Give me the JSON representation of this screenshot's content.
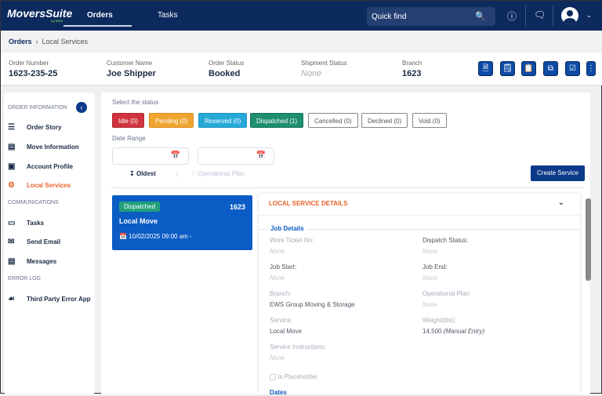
{
  "nav": {
    "logo": "MoversSuite",
    "logo_sub": "by EWS",
    "tabs": [
      "Orders",
      "Tasks"
    ],
    "search_placeholder": "Quick find"
  },
  "breadcrumb": [
    "Orders",
    "Local Services"
  ],
  "header": {
    "fields": [
      {
        "label": "Order Number",
        "value": "1623-235-25"
      },
      {
        "label": "Customer Name",
        "value": "Joe Shipper"
      },
      {
        "label": "Order Status",
        "value": "Booked"
      },
      {
        "label": "Shipment Status",
        "value": "None"
      },
      {
        "label": "Branch",
        "value": "1623"
      }
    ]
  },
  "sidebar": {
    "sections": [
      {
        "title": "ORDER INFORMATION",
        "items": [
          {
            "label": "Order Story",
            "icon": "list-icon"
          },
          {
            "label": "Move Information",
            "icon": "document-icon"
          },
          {
            "label": "Account Profile",
            "icon": "profile-icon"
          },
          {
            "label": "Local Services",
            "icon": "gears-icon",
            "active": true
          }
        ]
      },
      {
        "title": "COMMUNICATIONS",
        "items": [
          {
            "label": "Tasks",
            "icon": "monitor-icon"
          },
          {
            "label": "Send Email",
            "icon": "email-icon"
          },
          {
            "label": "Messages",
            "icon": "message-icon"
          }
        ]
      },
      {
        "title": "ERROR LOG",
        "items": [
          {
            "label": "Third Party Error App",
            "icon": "network-icon"
          }
        ]
      }
    ]
  },
  "filters": {
    "status_label": "Select the status",
    "statuses": [
      "Idle (0)",
      "Pending (0)",
      "Reserved (0)",
      "Dispatched (1)",
      "Cancelled (0)",
      "Declined (0)",
      "Void (0)"
    ],
    "date_label": "Date Range",
    "sort": "Oldest",
    "plan": "Operational Plan",
    "create": "Create Service"
  },
  "service_card": {
    "status": "Dispatched",
    "number": "1623",
    "title": "Local Move",
    "date": "10/02/2025 09:00 am -"
  },
  "details": {
    "title": "LOCAL SERVICE DETAILS",
    "section": "Job Details",
    "fields": [
      {
        "label": "Work Ticket No:",
        "value": "None"
      },
      {
        "label": "Dispatch Status:",
        "value": "None"
      },
      {
        "label": "Job Start:",
        "value": "None"
      },
      {
        "label": "Job End:",
        "value": "None"
      },
      {
        "label": "Branch:",
        "value": "EWS Group Moving & Storage"
      },
      {
        "label": "Operational Plan:",
        "value": "None"
      },
      {
        "label": "Service:",
        "value": "Local Move"
      },
      {
        "label": "Weight(lbs):",
        "value": "14,500",
        "note": "(Manual Entry)"
      },
      {
        "label": "Service Instructions:",
        "value": "None"
      }
    ],
    "placeholder": "Is Placeholder",
    "next_section": "Dates"
  },
  "colors": {
    "nav": "#0c2a5e",
    "accent": "#e8632a",
    "idle": "#d0343f",
    "pending": "#f0a431",
    "reserved": "#27a9d8",
    "dispatched": "#1f8f6e"
  }
}
